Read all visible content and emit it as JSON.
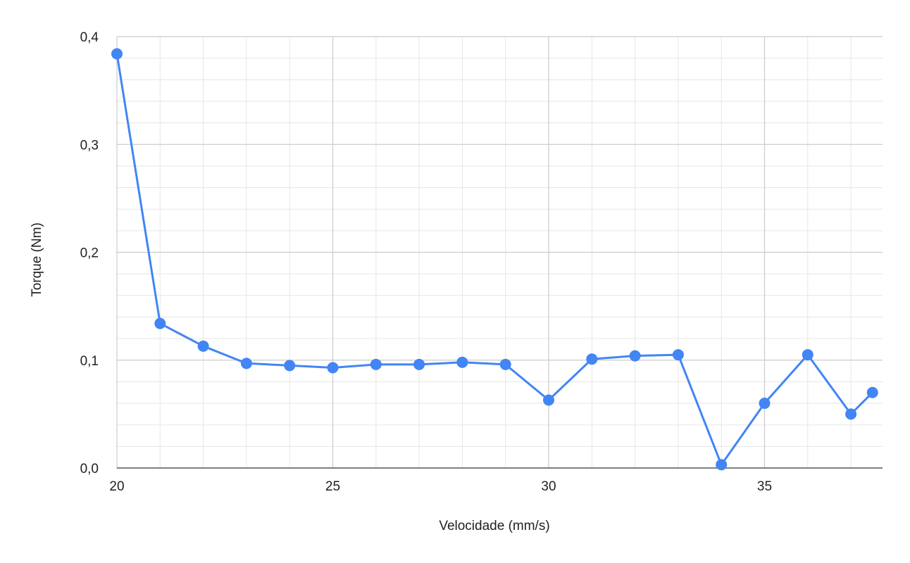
{
  "chart_data": {
    "type": "line",
    "xlabel": "Velocidade (mm/s)",
    "ylabel": "Torque (Nm)",
    "xlim": [
      20,
      37.5
    ],
    "ylim": [
      0,
      0.4
    ],
    "x_ticks": [
      20,
      25,
      30,
      35
    ],
    "x_tick_labels": [
      "20",
      "25",
      "30",
      "35"
    ],
    "y_ticks": [
      0,
      0.1,
      0.2,
      0.3,
      0.4
    ],
    "y_tick_labels": [
      "0,0",
      "0,1",
      "0,2",
      "0,3",
      "0,4"
    ],
    "grid": true,
    "legend": "none",
    "series": [
      {
        "color": "#4285f4",
        "marker": "circle",
        "x": [
          20,
          21,
          22,
          23,
          24,
          25,
          26,
          27,
          28,
          29,
          30,
          31,
          32,
          33,
          34,
          35,
          36,
          37,
          37.5
        ],
        "y": [
          0.384,
          0.134,
          0.113,
          0.097,
          0.095,
          0.093,
          0.096,
          0.096,
          0.098,
          0.096,
          0.063,
          0.101,
          0.104,
          0.105,
          0.003,
          0.06,
          0.105,
          0.05,
          0.07
        ]
      }
    ]
  }
}
